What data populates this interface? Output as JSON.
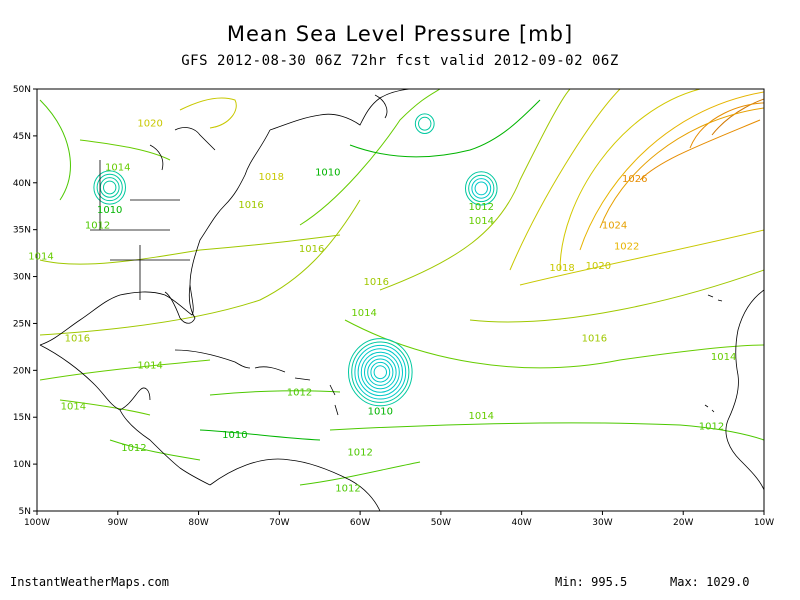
{
  "title": "Mean Sea Level Pressure [mb]",
  "subtitle": "GFS 2012-08-30 06Z 72hr fcst valid 2012-09-02 06Z",
  "footer": {
    "site": "InstantWeatherMaps.com",
    "min_label": "Min:",
    "min_value": "995.5",
    "max_label": "Max:",
    "max_value": "1029.0"
  },
  "axes": {
    "x_ticks": [
      "100W",
      "90W",
      "80W",
      "70W",
      "60W",
      "50W",
      "40W",
      "30W",
      "20W",
      "10W"
    ],
    "y_ticks": [
      "50N",
      "45N",
      "40N",
      "35N",
      "30N",
      "25N",
      "20N",
      "15N",
      "10N",
      "5N"
    ]
  },
  "contour_labels": [
    {
      "text": "1020",
      "lon": -86,
      "lat": 46,
      "color": "#c8c800"
    },
    {
      "text": "1014",
      "lon": -90,
      "lat": 41.3,
      "color": "#66cc00"
    },
    {
      "text": "1010",
      "lon": -91,
      "lat": 36.8,
      "color": "#00b400"
    },
    {
      "text": "1012",
      "lon": -92.5,
      "lat": 35.1,
      "color": "#4cc800"
    },
    {
      "text": "1018",
      "lon": -71,
      "lat": 40.3,
      "color": "#c8c800"
    },
    {
      "text": "1016",
      "lon": -73.5,
      "lat": 37.3,
      "color": "#a0c800"
    },
    {
      "text": "1016",
      "lon": -66,
      "lat": 32.6,
      "color": "#a0c800"
    },
    {
      "text": "1014",
      "lon": -99.5,
      "lat": 31.8,
      "color": "#66cc00"
    },
    {
      "text": "1010",
      "lon": -64,
      "lat": 40.8,
      "color": "#00b400"
    },
    {
      "text": "1012",
      "lon": -45,
      "lat": 37.1,
      "color": "#4cc800"
    },
    {
      "text": "1014",
      "lon": -45,
      "lat": 35.6,
      "color": "#66cc00"
    },
    {
      "text": "1026",
      "lon": -26,
      "lat": 40.1,
      "color": "#e68c00"
    },
    {
      "text": "1024",
      "lon": -28.5,
      "lat": 35.1,
      "color": "#e6a000"
    },
    {
      "text": "1022",
      "lon": -27,
      "lat": 32.9,
      "color": "#e6b400"
    },
    {
      "text": "1020",
      "lon": -30.5,
      "lat": 30.8,
      "color": "#c8c800"
    },
    {
      "text": "1018",
      "lon": -35,
      "lat": 30.6,
      "color": "#c8c800"
    },
    {
      "text": "1016",
      "lon": -58,
      "lat": 29.1,
      "color": "#a0c800"
    },
    {
      "text": "1014",
      "lon": -59.5,
      "lat": 25.8,
      "color": "#66cc00"
    },
    {
      "text": "1016",
      "lon": -95,
      "lat": 23.1,
      "color": "#a0c800"
    },
    {
      "text": "1016",
      "lon": -31,
      "lat": 23.1,
      "color": "#a0c800"
    },
    {
      "text": "1014",
      "lon": -86,
      "lat": 20.2,
      "color": "#66cc00"
    },
    {
      "text": "1014",
      "lon": -15,
      "lat": 21.1,
      "color": "#66cc00"
    },
    {
      "text": "1012",
      "lon": -67.5,
      "lat": 17.3,
      "color": "#4cc800"
    },
    {
      "text": "1010",
      "lon": -57.5,
      "lat": 15.3,
      "color": "#00b400"
    },
    {
      "text": "1014",
      "lon": -95.5,
      "lat": 15.8,
      "color": "#66cc00"
    },
    {
      "text": "1014",
      "lon": -45,
      "lat": 14.8,
      "color": "#66cc00"
    },
    {
      "text": "1012",
      "lon": -16.5,
      "lat": 13.7,
      "color": "#4cc800"
    },
    {
      "text": "1010",
      "lon": -75.5,
      "lat": 12.8,
      "color": "#00b400"
    },
    {
      "text": "1012",
      "lon": -88,
      "lat": 11.4,
      "color": "#4cc800"
    },
    {
      "text": "1012",
      "lon": -60,
      "lat": 10.9,
      "color": "#4cc800"
    },
    {
      "text": "1012",
      "lon": -61.5,
      "lat": 7.1,
      "color": "#4cc800"
    }
  ],
  "lows": [
    {
      "name": "hurricane-low",
      "lon": -57.5,
      "lat": 19.8,
      "rings": 9,
      "color": "#00c8c8"
    },
    {
      "name": "mid-atlantic-low",
      "lon": -45,
      "lat": 39.4,
      "rings": 4,
      "color": "#00c8c8"
    },
    {
      "name": "great-plains-low",
      "lon": -91,
      "lat": 39.5,
      "rings": 4,
      "color": "#00c8a0"
    },
    {
      "name": "newfoundland-low",
      "lon": -52,
      "lat": 46.3,
      "rings": 2,
      "color": "#00c8c8"
    }
  ],
  "colors": {
    "cyan": "#00c8c8",
    "green": "#00b400",
    "lime": "#66cc00",
    "yellow": "#c8c800",
    "orange": "#e68c00"
  }
}
